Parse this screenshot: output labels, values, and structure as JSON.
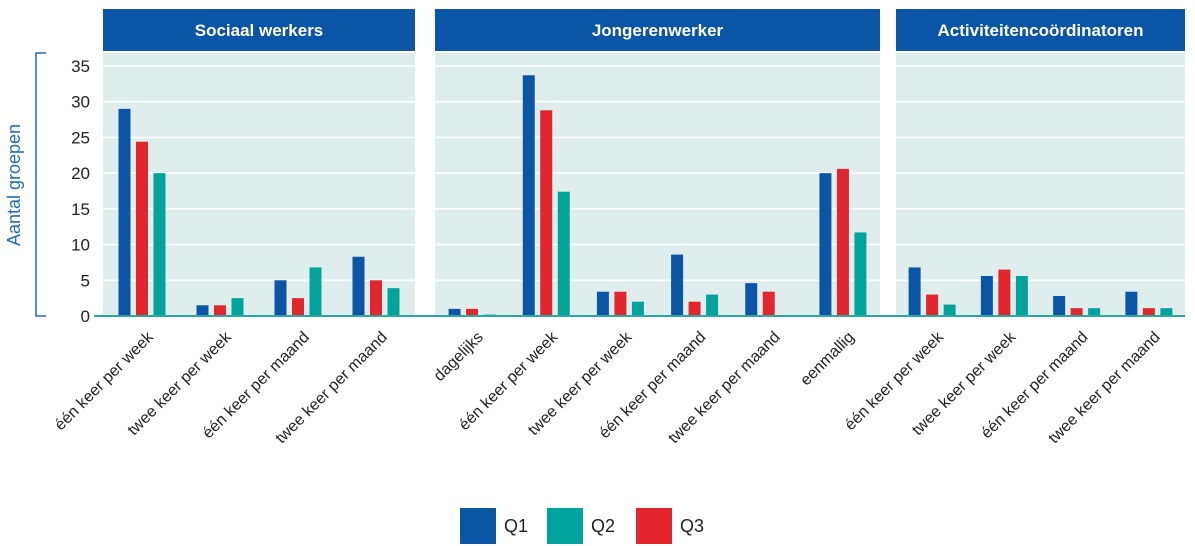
{
  "chart_data": {
    "type": "bar",
    "ylabel": "Aantal groepen",
    "ylim": [
      0,
      35
    ],
    "yticks": [
      0,
      5,
      10,
      15,
      20,
      25,
      30,
      35
    ],
    "grid": true,
    "legend_position": "bottom-center",
    "colors": {
      "Q1": "#0a55a6",
      "Q2": "#00a49a",
      "Q3": "#e3262d",
      "panel_bg": "#dfeeed",
      "header_bg": "#0a55a6",
      "axis": "#2aa9a0",
      "ylabel": "#1f6fb6"
    },
    "series_order": [
      "Q1",
      "Q3",
      "Q2"
    ],
    "legend": [
      "Q1",
      "Q2",
      "Q3"
    ],
    "panels": [
      {
        "title": "Sociaal werkers",
        "categories": [
          "één keer per week",
          "twee keer per week",
          "één keer per maand",
          "twee keer per maand"
        ],
        "series": [
          {
            "name": "Q1",
            "values": [
              29,
              1.5,
              5,
              8.3
            ]
          },
          {
            "name": "Q3",
            "values": [
              24.4,
              1.5,
              2.5,
              5
            ]
          },
          {
            "name": "Q2",
            "values": [
              20,
              2.5,
              6.8,
              3.9
            ]
          }
        ]
      },
      {
        "title": "Jongerenwerker",
        "categories": [
          "dagelijks",
          "één keer per week",
          "twee keer per week",
          "één keer per maand",
          "twee keer per maand",
          "eenmallig"
        ],
        "series": [
          {
            "name": "Q1",
            "values": [
              1,
              33.7,
              3.4,
              8.6,
              4.6,
              20
            ]
          },
          {
            "name": "Q3",
            "values": [
              1,
              28.8,
              3.4,
              2,
              3.4,
              20.6
            ]
          },
          {
            "name": "Q2",
            "values": [
              0.2,
              17.4,
              2,
              3,
              0,
              11.7
            ]
          }
        ]
      },
      {
        "title": "Activiteitencoördinatoren",
        "categories": [
          "één keer per week",
          "twee keer per week",
          "één keer per maand",
          "twee keer per maand"
        ],
        "series": [
          {
            "name": "Q1",
            "values": [
              6.8,
              5.6,
              2.8,
              3.4
            ]
          },
          {
            "name": "Q3",
            "values": [
              3,
              6.5,
              1.1,
              1.1
            ]
          },
          {
            "name": "Q2",
            "values": [
              1.6,
              5.6,
              1.1,
              1.1
            ]
          }
        ]
      }
    ]
  }
}
